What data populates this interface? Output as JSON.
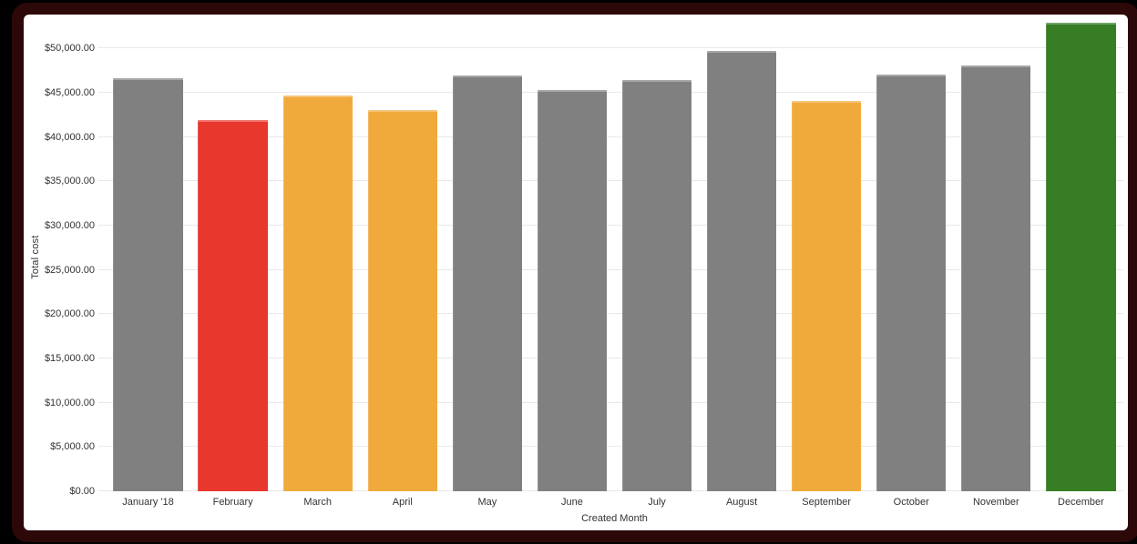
{
  "frame": {
    "outer_background": "#000000",
    "ring_color": "#2d0808",
    "card_background": "#ffffff"
  },
  "chart_data": {
    "type": "bar",
    "title": "",
    "xlabel": "Created Month",
    "ylabel": "Total cost",
    "categories": [
      "January '18",
      "February",
      "March",
      "April",
      "May",
      "June",
      "July",
      "August",
      "September",
      "October",
      "November",
      "December"
    ],
    "values": [
      46600,
      41900,
      44700,
      43000,
      46900,
      45300,
      46400,
      49700,
      44100,
      47000,
      48100,
      52900
    ],
    "bar_colors": [
      "#808080",
      "#e8372c",
      "#f0aa3c",
      "#f0aa3c",
      "#808080",
      "#808080",
      "#808080",
      "#808080",
      "#f0aa3c",
      "#808080",
      "#808080",
      "#377d24"
    ],
    "default_bar_color": "#808080",
    "highlight_colors": {
      "red": "#e8372c",
      "orange": "#f0aa3c",
      "green": "#377d24"
    },
    "y_ticks": [
      {
        "value": 0,
        "label": "$0.00"
      },
      {
        "value": 5000,
        "label": "$5,000.00"
      },
      {
        "value": 10000,
        "label": "$10,000.00"
      },
      {
        "value": 15000,
        "label": "$15,000.00"
      },
      {
        "value": 20000,
        "label": "$20,000.00"
      },
      {
        "value": 25000,
        "label": "$25,000.00"
      },
      {
        "value": 30000,
        "label": "$30,000.00"
      },
      {
        "value": 35000,
        "label": "$35,000.00"
      },
      {
        "value": 40000,
        "label": "$40,000.00"
      },
      {
        "value": 45000,
        "label": "$45,000.00"
      },
      {
        "value": 50000,
        "label": "$50,000.00"
      }
    ],
    "ylim": [
      0,
      52900
    ],
    "grid": "horizontal",
    "gridline_color": "#e9e9e9",
    "text_color": "#333333",
    "legend": "none"
  }
}
